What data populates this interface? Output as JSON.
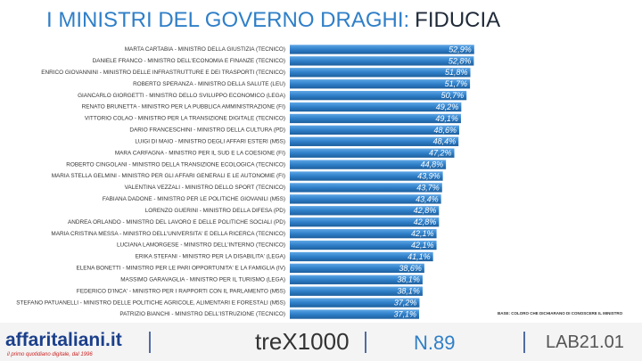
{
  "chart_data": {
    "type": "hbar",
    "title": "I MINISTRI DEL GOVERNO DRAGHI:",
    "title_highlight": "FIDUCIA",
    "note": "BASE: COLORO CHE DICHIARANO DI CONOSCERE IL MINISTRO",
    "color": "#2f7fc8",
    "xlim": [
      0,
      55
    ],
    "categories": [
      "MARTA CARTABIA - MINISTRO DELLA GIUSTIZIA (TECNICO)",
      "DANIELE FRANCO - MINISTRO DELL'ECONOMIA E FINANZE (TECNICO)",
      "ENRICO GIOVANNINI - MINISTRO DELLE INFRASTRUTTURE E DEI TRASPORTI (TECNICO)",
      "ROBERTO SPERANZA - MINISTRO DELLA SALUTE (LEU)",
      "GIANCARLO GIORGETTI - MINISTRO DELLO SVILUPPO ECONOMICO (LEGA)",
      "RENATO BRUNETTA - MINISTRO PER LA PUBBLICA AMMINISTRAZIONE (FI)",
      "VITTORIO COLAO - MINISTRO PER LA TRANSIZIONE DIGITALE (TECNICO)",
      "DARIO FRANCESCHINI - MINISTRO DELLA CULTURA (PD)",
      "LUIGI DI MAIO - MINISTRO DEGLI AFFARI ESTERI (M5S)",
      "MARA CARFAGNA - MINISTRO PER IL SUD E LA COESIONE (FI)",
      "ROBERTO CINGOLANI - MINISTRO DELLA TRANSIZIONE ECOLOGICA (TECNICO)",
      "MARIA STELLA GELMINI - MINISTRO PER GLI AFFARI GENERALI E LE AUTONOMIE (FI)",
      "VALENTINA VEZZALI - MINISTRO DELLO SPORT (TECNICO)",
      "FABIANA DADONE - MINISTRO PER LE POLITICHE GIOVANILI (M5S)",
      "LORENZO GUERINI - MINISTRO DELLA DIFESA (PD)",
      "ANDREA ORLANDO - MINISTRO DEL LAVORO E DELLE POLITICHE SOCIALI (PD)",
      "MARIA CRISTINA MESSA - MINISTRO DELL'UNIVERSITA' E DELLA RICERCA (TECNICO)",
      "LUCIANA LAMORGESE - MINISTRO DELL'INTERNO (TECNICO)",
      "ERIKA STEFANI - MINISTRO PER LA DISABILITA' (LEGA)",
      "ELENA BONETTI - MINISTRO PER LE PARI OPPORTUNITA' E LA FAMIGLIA (IV)",
      "MASSIMO GARAVAGLIA - MINISTRO PER IL TURISMO (LEGA)",
      "FEDERICO D'INCA' - MINISTRO PER I RAPPORTI CON IL PARLAMENTO (M5S)",
      "STEFANO PATUANELLI - MINISTRO DELLE POLITICHE AGRICOLE, ALIMENTARI E FORESTALI (M5S)",
      "PATRIZIO BIANCHI - MINISTRO DELL'ISTRUZIONE (TECNICO)"
    ],
    "values": [
      52.9,
      52.8,
      51.8,
      51.7,
      50.7,
      49.2,
      49.1,
      48.6,
      48.4,
      47.2,
      44.8,
      43.9,
      43.7,
      43.4,
      42.8,
      42.8,
      42.1,
      42.1,
      41.1,
      38.6,
      38.1,
      38.1,
      37.2,
      37.1
    ],
    "value_labels": [
      "52,9%",
      "52,8%",
      "51,8%",
      "51,7%",
      "50,7%",
      "49,2%",
      "49,1%",
      "48,6%",
      "48,4%",
      "47,2%",
      "44,8%",
      "43,9%",
      "43,7%",
      "43,4%",
      "42,8%",
      "42,8%",
      "42,1%",
      "42,1%",
      "41,1%",
      "38,6%",
      "38,1%",
      "38,1%",
      "37,2%",
      "37,1%"
    ]
  },
  "footer": {
    "brand": "affaritaliani.it",
    "tagline": "il primo quotidiano digitale, dal 1996",
    "partner": "treX1000",
    "issue": "N.89",
    "lab": "LAB21.01"
  }
}
